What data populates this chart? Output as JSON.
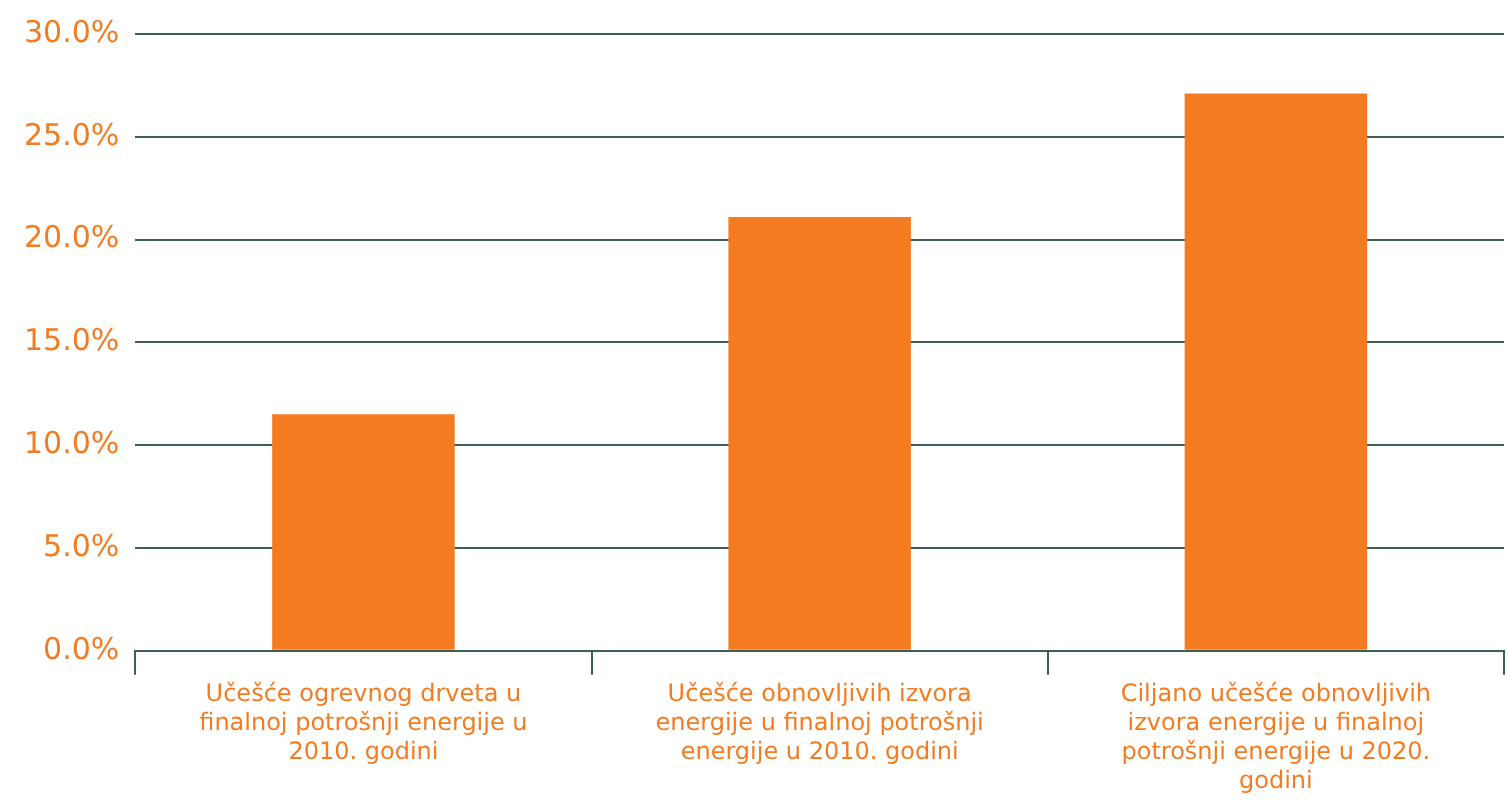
{
  "chart_data": {
    "type": "bar",
    "categories": [
      "Učešće ogrevnog drveta u finalnoj potrošnji energije u 2010. godini",
      "Učešće obnovljivih izvora energije u finalnoj potrošnji energije u 2010. godini",
      "Ciljano učešće obnovljivih izvora energije u finalnoj potrošnji energije u 2020. godini"
    ],
    "values": [
      11.5,
      21.1,
      27.1
    ],
    "color": "#f47b20",
    "ylim": [
      0,
      30
    ],
    "yticks": [
      {
        "value": 0,
        "label": "0.0%"
      },
      {
        "value": 5,
        "label": "5.0%"
      },
      {
        "value": 10,
        "label": "10.0%"
      },
      {
        "value": 15,
        "label": "15.0%"
      },
      {
        "value": 20,
        "label": "20.0%"
      },
      {
        "value": 25,
        "label": "25.0%"
      },
      {
        "value": 30,
        "label": "30.0%"
      }
    ],
    "grid": "y",
    "legend": false
  }
}
